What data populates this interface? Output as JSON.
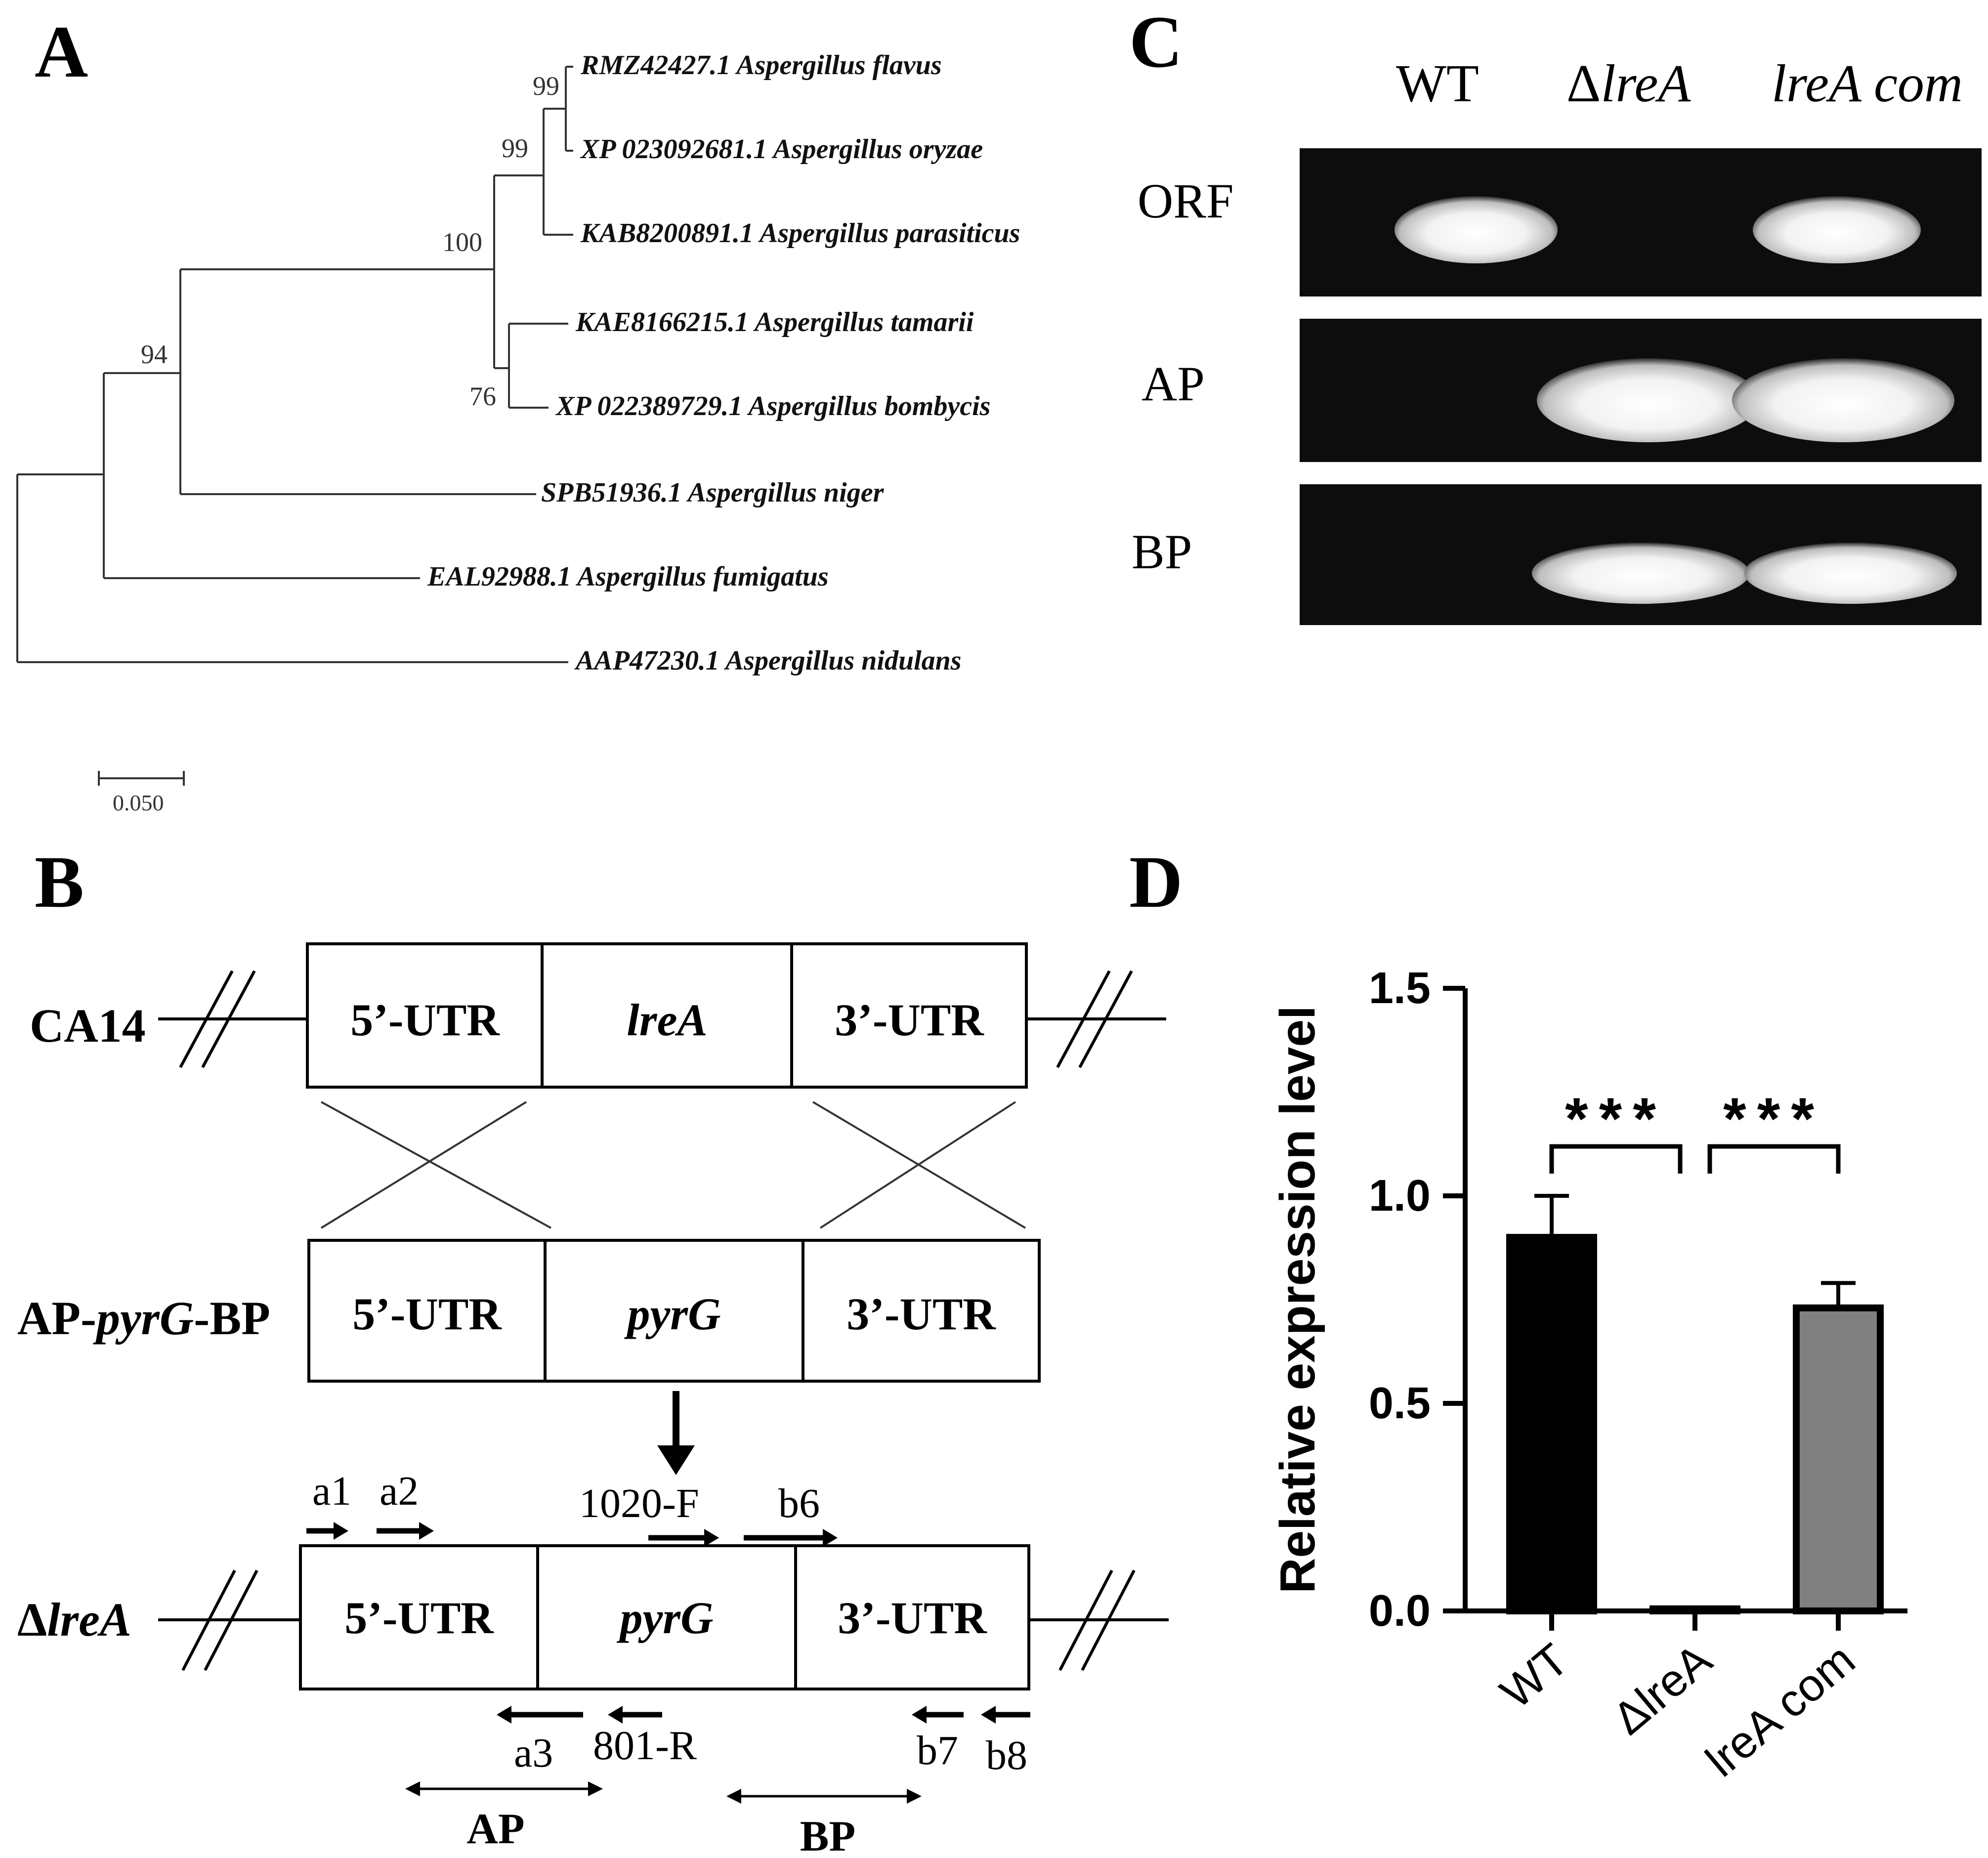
{
  "panels": {
    "A": {
      "letter": "A",
      "taxa": [
        "RMZ42427.1 Aspergillus flavus",
        "XP 023092681.1 Aspergillus oryzae",
        "KAB8200891.1 Aspergillus parasiticus",
        "KAE8166215.1 Aspergillus tamarii",
        "XP 022389729.1 Aspergillus bombycis",
        "SPB51936.1 Aspergillus niger",
        "EAL92988.1 Aspergillus fumigatus",
        "AAP47230.1 Aspergillus nidulans"
      ],
      "bootstrap": [
        "99",
        "99",
        "100",
        "76",
        "94"
      ],
      "scale_label": "0.050"
    },
    "B": {
      "letter": "B",
      "row1": {
        "label": "CA14",
        "boxes": [
          "5’-UTR",
          "lreA",
          "3’-UTR"
        ]
      },
      "row2": {
        "label_pre": "AP-",
        "label_ital": "pyrG",
        "label_post": "-BP",
        "boxes": [
          "5’-UTR",
          "pyrG",
          "3’-UTR"
        ]
      },
      "row3": {
        "label": "ΔlreA",
        "boxes": [
          "5’-UTR",
          "pyrG",
          "3’-UTR"
        ]
      },
      "primers": {
        "a1": "a1",
        "a2": "a2",
        "f1020": "1020-F",
        "b6": "b6",
        "a3": "a3",
        "r801": "801-R",
        "b7": "b7",
        "b8": "b8"
      },
      "regions": {
        "ap": "AP",
        "bp": "BP"
      }
    },
    "C": {
      "letter": "C",
      "columns": [
        "WT",
        "ΔlreA",
        "lreA com"
      ],
      "rows": [
        "ORF",
        "AP",
        "BP"
      ],
      "band_presence": [
        [
          1,
          0,
          1
        ],
        [
          0,
          1,
          1
        ],
        [
          0,
          1,
          1
        ]
      ]
    },
    "D": {
      "letter": "D"
    }
  },
  "chart_data": {
    "type": "bar",
    "title": "",
    "xlabel": "",
    "ylabel": "Relative expression level",
    "categories": [
      "WT",
      "ΔlreA",
      "lreA com"
    ],
    "values": [
      0.9,
      0.005,
      0.73
    ],
    "errors": [
      0.1,
      0,
      0.06
    ],
    "bar_colors": [
      "#000000",
      "#000000",
      "#808080"
    ],
    "ylim": [
      0,
      1.5
    ],
    "yticks": [
      "0.0",
      "0.5",
      "1.0",
      "1.5"
    ],
    "significance": [
      {
        "from": 0,
        "to": 1,
        "label": "***"
      },
      {
        "from": 1,
        "to": 2,
        "label": "***"
      }
    ]
  }
}
